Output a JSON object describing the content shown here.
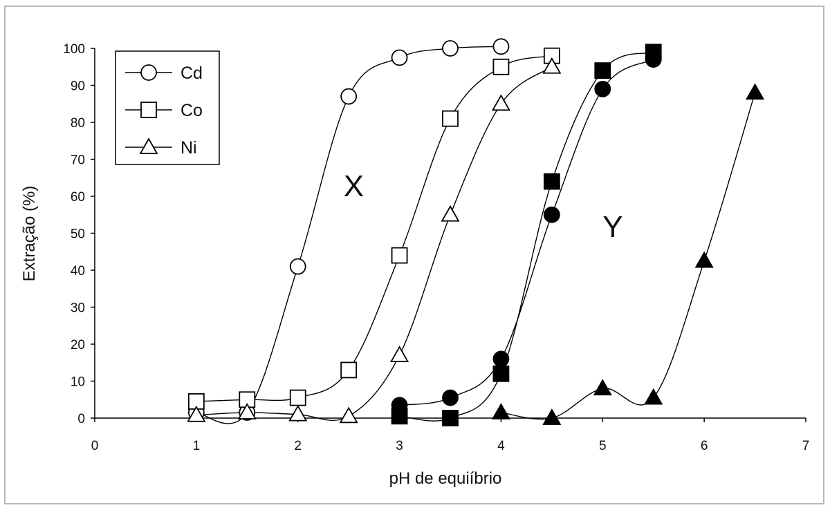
{
  "chart_data": {
    "type": "line",
    "xlabel": "pH de equiíbrio",
    "ylabel": "Extração (%)",
    "xlim": [
      0,
      7
    ],
    "ylim": [
      0,
      100
    ],
    "xticks": [
      "0",
      "1",
      "2",
      "3",
      "4",
      "5",
      "6",
      "7"
    ],
    "yticks": [
      "0",
      "10",
      "20",
      "30",
      "40",
      "50",
      "60",
      "70",
      "80",
      "90",
      "100"
    ],
    "grid": false,
    "legend_position": "top-left",
    "annotations": [
      {
        "text": "X",
        "x": 2.55,
        "y": 60
      },
      {
        "text": "Y",
        "x": 5.1,
        "y": 49
      }
    ],
    "series": [
      {
        "name": "Cd",
        "group": "X",
        "marker": "circle",
        "fill": "open",
        "x": [
          1,
          1.5,
          2,
          2.5,
          3,
          3.5,
          4
        ],
        "y": [
          1.5,
          1.5,
          41,
          87,
          97.5,
          100,
          100.5
        ]
      },
      {
        "name": "Co",
        "group": "X",
        "marker": "square",
        "fill": "open",
        "x": [
          1,
          1.5,
          2,
          2.5,
          3,
          3.5,
          4,
          4.5
        ],
        "y": [
          4.5,
          5,
          5.5,
          13,
          44,
          81,
          95,
          98
        ]
      },
      {
        "name": "Ni",
        "group": "X",
        "marker": "triangle",
        "fill": "open",
        "x": [
          1,
          1.5,
          2,
          2.5,
          3,
          3.5,
          4,
          4.5
        ],
        "y": [
          0.8,
          1.5,
          1,
          0.5,
          17,
          55,
          85,
          95
        ]
      },
      {
        "group": "Y",
        "marker": "circle",
        "fill": "solid",
        "x": [
          3,
          3.5,
          4,
          4.5,
          5,
          5.5
        ],
        "y": [
          3.5,
          5.5,
          16,
          55,
          89,
          97
        ]
      },
      {
        "group": "Y",
        "marker": "square",
        "fill": "solid",
        "x": [
          3,
          3.5,
          4,
          4.5,
          5,
          5.5
        ],
        "y": [
          0.5,
          0,
          12,
          64,
          94,
          99
        ]
      },
      {
        "group": "Y",
        "marker": "triangle",
        "fill": "solid",
        "x": [
          4,
          4.5,
          5,
          5.5,
          6,
          6.5
        ],
        "y": [
          1.5,
          0,
          8,
          5.5,
          42.5,
          88
        ]
      }
    ]
  },
  "legend": {
    "items": [
      {
        "label": "Cd",
        "marker": "circle"
      },
      {
        "label": "Co",
        "marker": "square"
      },
      {
        "label": "Ni",
        "marker": "triangle"
      }
    ]
  }
}
